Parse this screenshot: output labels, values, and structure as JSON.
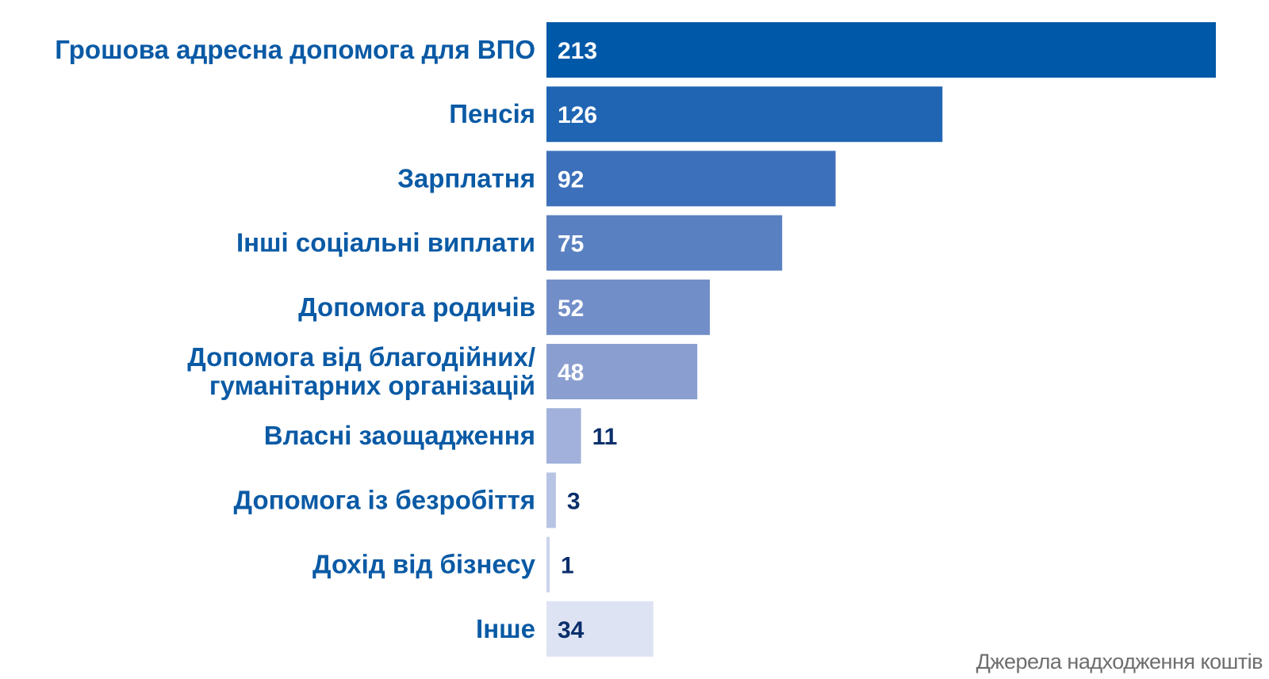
{
  "chart_data": {
    "type": "bar",
    "orientation": "horizontal",
    "categories": [
      [
        "Грошова адресна допомога для ВПО"
      ],
      [
        "Пенсія"
      ],
      [
        "Зарплатня"
      ],
      [
        "Інші соціальні виплати"
      ],
      [
        "Допомога родичів"
      ],
      [
        "Допомога від благодійних/",
        "гуманітарних  організацій"
      ],
      [
        "Власні заощадження"
      ],
      [
        "Допомога із безробіття"
      ],
      [
        "Дохід від бізнесу"
      ],
      [
        "Інше"
      ]
    ],
    "values": [
      213,
      126,
      92,
      75,
      52,
      48,
      11,
      3,
      1,
      34
    ],
    "colors": [
      "#0058a8",
      "#1f65b3",
      "#3d70ba",
      "#5980c1",
      "#728ec8",
      "#8a9fd0",
      "#a1b1db",
      "#b8c4e4",
      "#cbd3ec",
      "#dee3f4"
    ],
    "value_label_colors": [
      "#ffffff",
      "#ffffff",
      "#ffffff",
      "#ffffff",
      "#ffffff",
      "#ffffff",
      "#0a2f6b",
      "#0a2f6b",
      "#0a2f6b",
      "#0a2f6b"
    ],
    "xlim": [
      0,
      213
    ],
    "grid": false,
    "legend": "none",
    "label_color": "#0a5aa5"
  },
  "caption": "Джерела надходження коштів"
}
